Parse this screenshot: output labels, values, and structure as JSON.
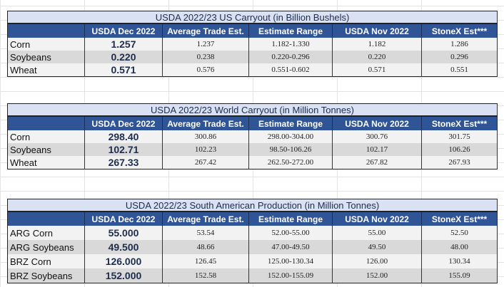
{
  "columns": [
    "",
    "USDA Dec 2022",
    "Average Trade Est.",
    "Estimate Range",
    "USDA Nov 2022",
    "StoneX Est***"
  ],
  "tables": [
    {
      "title": "USDA 2022/23 US Carryout (in Billion Bushels)",
      "rows": [
        [
          "Corn",
          "1.257",
          "1.237",
          "1.182-1.330",
          "1.182",
          "1.286"
        ],
        [
          "Soybeans",
          "0.220",
          "0.238",
          "0.220-0.296",
          "0.220",
          "0.296"
        ],
        [
          "Wheat",
          "0.571",
          "0.576",
          "0.551-0.602",
          "0.571",
          "0.551"
        ]
      ]
    },
    {
      "title": "USDA 2022/23 World Carryout (in Million Tonnes)",
      "rows": [
        [
          "Corn",
          "298.40",
          "300.86",
          "298.00-304.00",
          "300.76",
          "301.75"
        ],
        [
          "Soybeans",
          "102.71",
          "102.23",
          "98.50-106.26",
          "102.17",
          "106.26"
        ],
        [
          "Wheat",
          "267.33",
          "267.42",
          "262.50-272.00",
          "267.82",
          "267.93"
        ]
      ]
    },
    {
      "title": "USDA 2022/23 South American Production (in Million Tonnes)",
      "rows": [
        [
          "ARG Corn",
          "55.000",
          "53.54",
          "52.00-55.00",
          "55.00",
          "52.50"
        ],
        [
          "ARG Soybeans",
          "49.500",
          "48.66",
          "47.00-49.50",
          "49.50",
          "48.00"
        ],
        [
          "BRZ Corn",
          "126.000",
          "126.45",
          "125.00-130.34",
          "126.00",
          "130.34"
        ],
        [
          "BRZ Soybeans",
          "152.000",
          "152.58",
          "152.00-155.09",
          "152.00",
          "155.09"
        ]
      ]
    }
  ]
}
